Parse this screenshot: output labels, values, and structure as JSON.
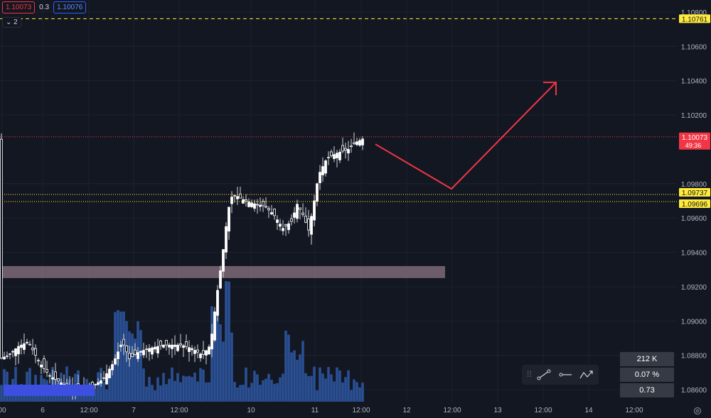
{
  "top_bar": {
    "sell_price": "1.10073",
    "spread": "0.3",
    "buy_price": "1.10076"
  },
  "interval_badge": {
    "chevron_icon": "chevron-down-icon",
    "value": "2"
  },
  "price_axis": {
    "ticks": [
      "1.10800",
      "1.10600",
      "1.10400",
      "1.10200",
      "1.09800",
      "1.09600",
      "1.09400",
      "1.09200",
      "1.09000",
      "1.08800",
      "1.08600"
    ],
    "labels": [
      {
        "text": "1.10761",
        "color": "#ffeb3b",
        "text_color": "#131722"
      },
      {
        "text": "1.10073",
        "sub": "49:36",
        "color": "#f23645",
        "text_color": "#ffffff"
      },
      {
        "text": "1.09737",
        "color": "#ffeb3b",
        "text_color": "#131722"
      },
      {
        "text": "1.09696",
        "color": "#ffeb3b",
        "text_color": "#131722"
      }
    ]
  },
  "time_axis": {
    "labels": [
      "00",
      "6",
      "12:00",
      "7",
      "12:00",
      "10",
      "11",
      "12:00",
      "12",
      "12:00",
      "13",
      "12:00",
      "14",
      "12:00"
    ]
  },
  "chart_data": {
    "type": "candlestick",
    "ylim": [
      1.0853,
      1.1087
    ],
    "horizontal_lines": [
      {
        "price": 1.10761,
        "style": "dashed",
        "color": "#ffeb3b"
      },
      {
        "price": 1.10073,
        "style": "dotted",
        "color": "#f23645"
      },
      {
        "price": 1.09737,
        "style": "dotted",
        "color": "#ffeb3b"
      },
      {
        "price": 1.09696,
        "style": "dotted",
        "color": "#ffeb3b"
      }
    ],
    "zone": {
      "price_top": 1.0932,
      "price_bottom": 1.0925,
      "color": "#7e6a77"
    },
    "projection_arrow": {
      "points": [
        [
          1.1003,
          "2024-06-12 03:00"
        ],
        [
          1.0977,
          "2024-06-12 11:30"
        ],
        [
          1.1039,
          "2024-06-13 14:00"
        ]
      ],
      "color": "#f23645"
    }
  },
  "toolbar": {
    "grip_icon": "drag-grip-icon",
    "tools": [
      "trendline-icon",
      "horizontal-ray-icon",
      "path-icon"
    ]
  },
  "stats": {
    "volume": "212 K",
    "change": "0.07 %",
    "value": "0.73"
  },
  "settings_icon": "gear-icon"
}
